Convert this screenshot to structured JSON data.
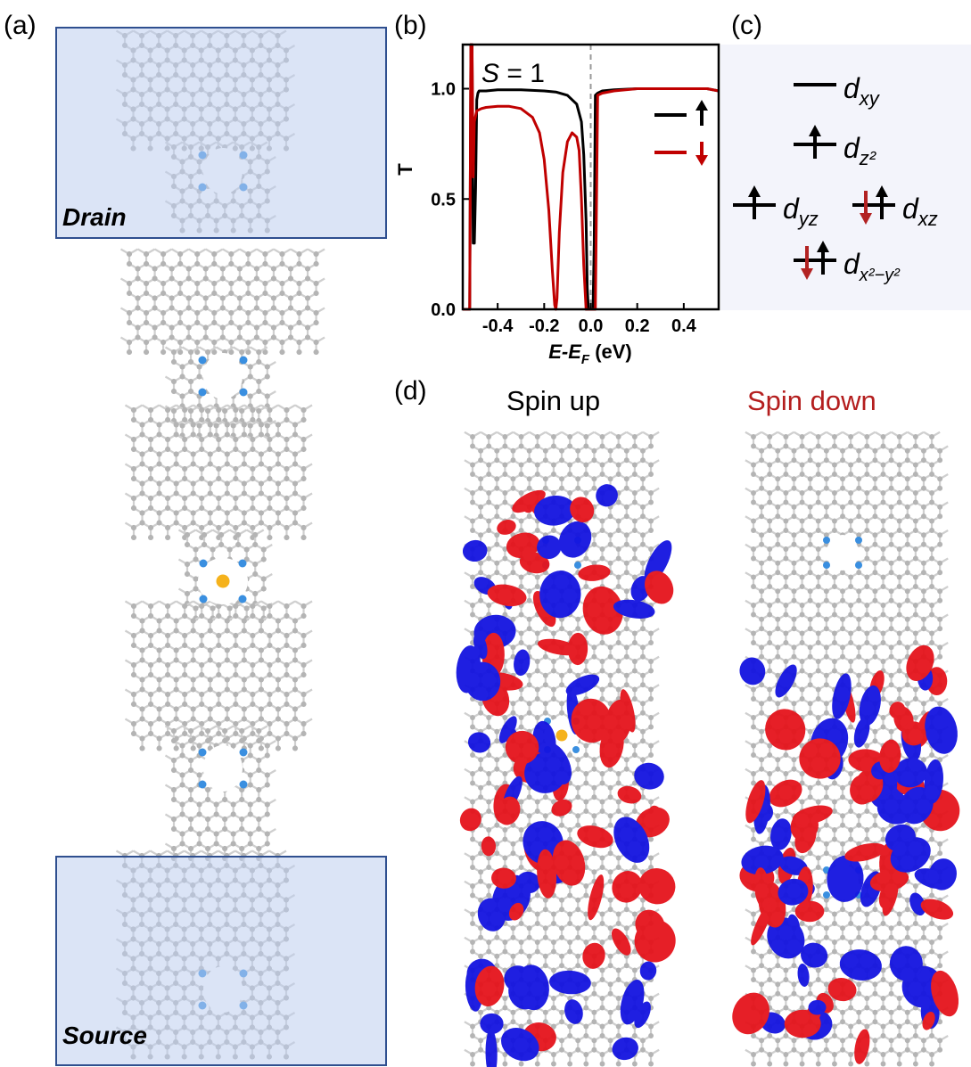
{
  "panels": {
    "a": "(a)",
    "b": "(b)",
    "c": "(c)",
    "d": "(d)"
  },
  "electrodes": {
    "drain": "Drain",
    "source": "Source"
  },
  "panel_c": {
    "levels": [
      {
        "orbital": "d_xy",
        "display": "d",
        "sub": "xy",
        "occupancy": "empty"
      },
      {
        "orbital": "d_z2",
        "display": "d",
        "sub": "z²",
        "occupancy": "up"
      },
      {
        "orbital": "d_yz",
        "display": "d",
        "sub": "yz",
        "occupancy": "up"
      },
      {
        "orbital": "d_xz",
        "display": "d",
        "sub": "xz",
        "occupancy": "up-down"
      },
      {
        "orbital": "d_x2-y2",
        "display": "d",
        "sub": "x²−y²",
        "occupancy": "up-down"
      }
    ]
  },
  "panel_d": {
    "spin_up_title": "Spin up",
    "spin_down_title": "Spin down"
  },
  "colors": {
    "spin_up": "#000000",
    "spin_down": "#c00000",
    "electrode_fill": "#c8d4ee",
    "electrode_border": "#2f4f8f",
    "carbon": "#b4b4b4",
    "nitrogen": "#3a8fe0",
    "metal": "#f5b21c",
    "isosurface_positive": "#e5141c",
    "isosurface_negative": "#1414e0"
  },
  "chart_data": {
    "type": "line",
    "annotation": "S = 1",
    "annotation_italic": "S",
    "annotation_rest": " = 1",
    "xlabel": "E-EF (eV)",
    "xlabel_main": "E-E",
    "xlabel_sub": "F",
    "xlabel_unit": " (eV)",
    "ylabel": "T",
    "xlim": [
      -0.55,
      0.55
    ],
    "ylim": [
      0.0,
      1.2
    ],
    "xticks": [
      -0.4,
      -0.2,
      0.0,
      0.2,
      0.4
    ],
    "xtick_labels": [
      "-0.4",
      "-0.2",
      "0.0",
      "0.2",
      "0.4"
    ],
    "yticks": [
      0.0,
      0.5,
      1.0
    ],
    "ytick_labels": [
      "0.0",
      "0.5",
      "1.0"
    ],
    "fermi_line": 0.0,
    "legend": "right",
    "series": [
      {
        "spin": "up",
        "color": "#000000",
        "x": [
          -0.55,
          -0.53,
          -0.52,
          -0.515,
          -0.51,
          -0.505,
          -0.5,
          -0.495,
          -0.49,
          -0.485,
          -0.48,
          -0.45,
          -0.4,
          -0.3,
          -0.2,
          -0.15,
          -0.1,
          -0.06,
          -0.04,
          -0.03,
          -0.02,
          -0.015,
          -0.01,
          0.0,
          0.01,
          0.015,
          0.02,
          0.03,
          0.05,
          0.1,
          0.2,
          0.3,
          0.4,
          0.5,
          0.55
        ],
        "y": [
          0.0,
          0.0,
          0.0,
          1.2,
          1.2,
          0.3,
          0.3,
          0.55,
          0.95,
          0.98,
          0.99,
          0.99,
          0.995,
          0.995,
          0.99,
          0.985,
          0.97,
          0.93,
          0.85,
          0.7,
          0.4,
          0.1,
          0.0,
          0.0,
          0.0,
          0.3,
          0.97,
          0.98,
          0.99,
          0.995,
          1.0,
          1.0,
          1.0,
          1.0,
          0.99
        ]
      },
      {
        "spin": "down",
        "color": "#c00000",
        "x": [
          -0.55,
          -0.53,
          -0.52,
          -0.515,
          -0.51,
          -0.505,
          -0.5,
          -0.49,
          -0.47,
          -0.45,
          -0.4,
          -0.35,
          -0.3,
          -0.25,
          -0.22,
          -0.2,
          -0.18,
          -0.165,
          -0.155,
          -0.15,
          -0.145,
          -0.135,
          -0.12,
          -0.1,
          -0.08,
          -0.06,
          -0.05,
          -0.04,
          -0.03,
          -0.02,
          -0.015,
          -0.01,
          0.0,
          0.01,
          0.02,
          0.03,
          0.05,
          0.1,
          0.2,
          0.3,
          0.4,
          0.5,
          0.55
        ],
        "y": [
          0.0,
          0.0,
          0.0,
          1.2,
          1.2,
          0.6,
          0.85,
          0.9,
          0.91,
          0.915,
          0.92,
          0.92,
          0.91,
          0.87,
          0.8,
          0.68,
          0.45,
          0.18,
          0.02,
          0.0,
          0.05,
          0.35,
          0.62,
          0.76,
          0.8,
          0.78,
          0.72,
          0.5,
          0.2,
          0.0,
          0.0,
          0.0,
          0.0,
          0.0,
          0.0,
          0.97,
          0.98,
          0.99,
          1.0,
          1.0,
          1.0,
          1.0,
          0.99
        ]
      }
    ]
  }
}
